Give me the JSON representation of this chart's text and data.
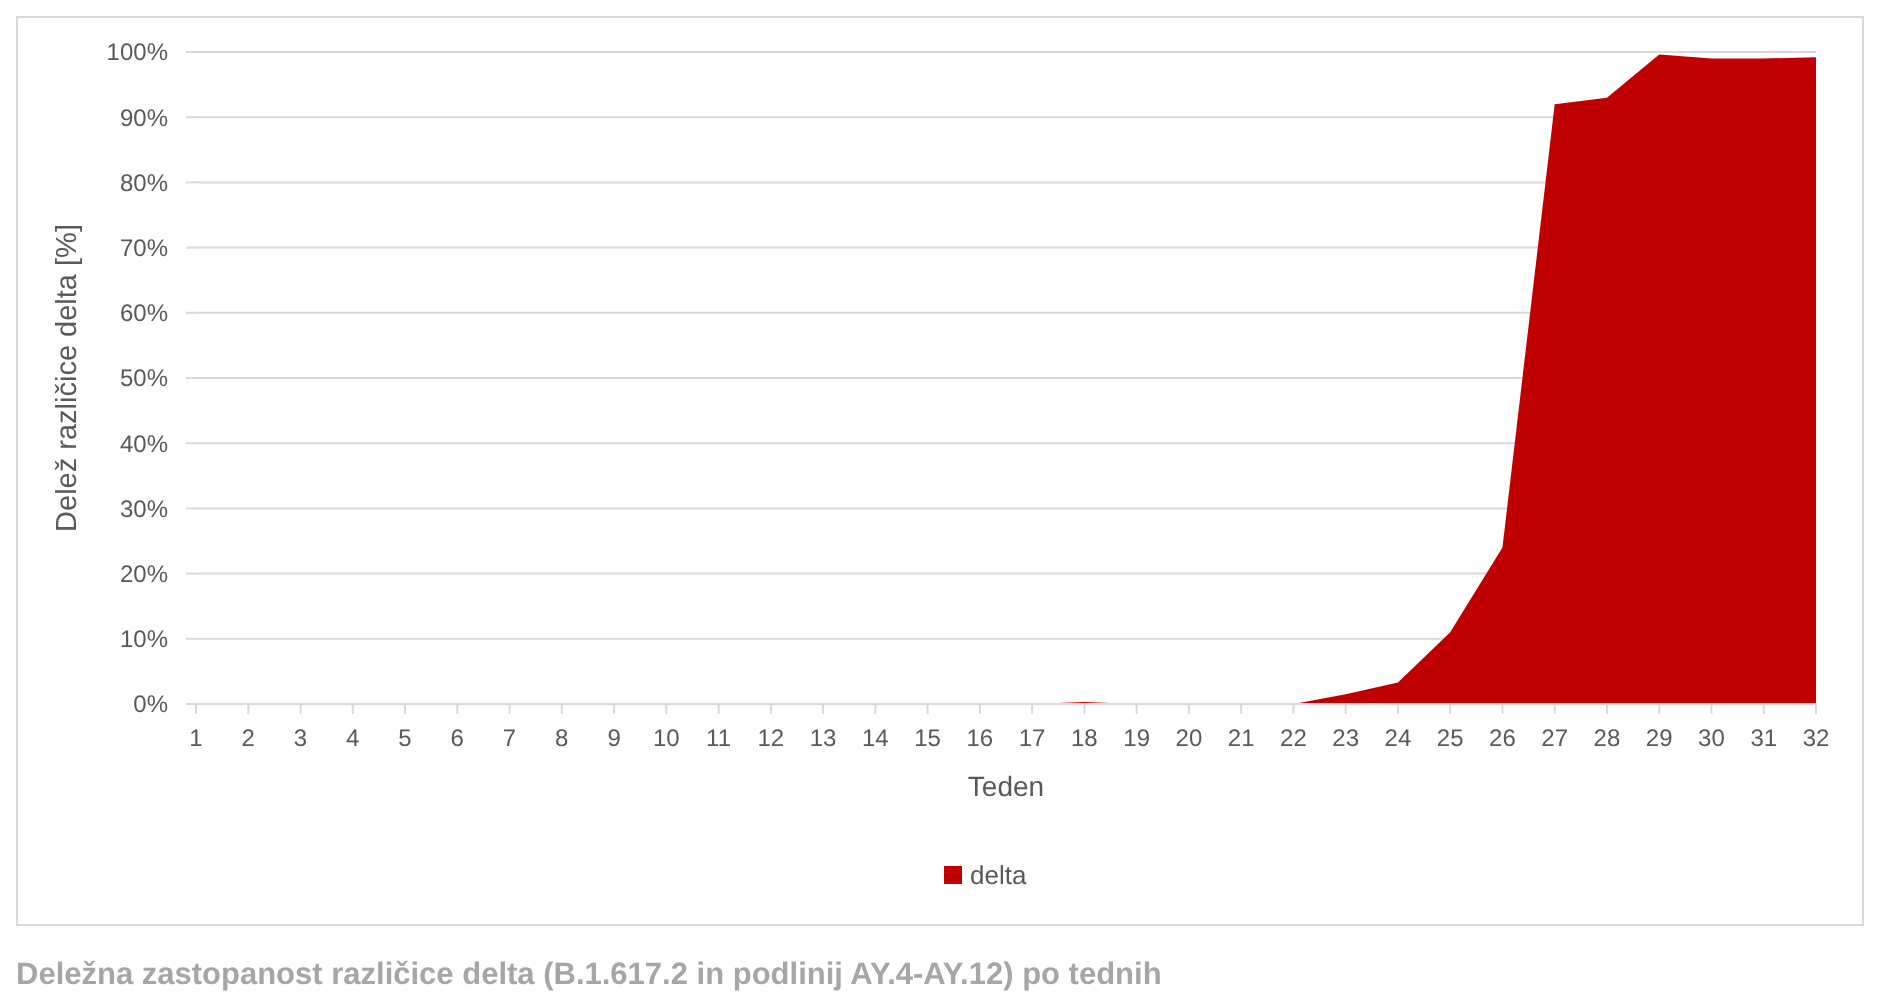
{
  "chart_data": {
    "type": "area",
    "xlabel": "Teden",
    "ylabel": "Delež različice delta [%]",
    "x": [
      1,
      2,
      3,
      4,
      5,
      6,
      7,
      8,
      9,
      10,
      11,
      12,
      13,
      14,
      15,
      16,
      17,
      18,
      19,
      20,
      21,
      22,
      23,
      24,
      25,
      26,
      27,
      28,
      29,
      30,
      31,
      32
    ],
    "series": [
      {
        "name": "delta",
        "color": "#c00000",
        "values": [
          0,
          0,
          0,
          0,
          0,
          0,
          0,
          0,
          0,
          0,
          0,
          0,
          0,
          0,
          0,
          0,
          0,
          0.3,
          0,
          0,
          0,
          0,
          1.5,
          3.3,
          11,
          24,
          92,
          93,
          99.6,
          99,
          99,
          99.2
        ]
      }
    ],
    "xlim": [
      1,
      32
    ],
    "xticks": [
      1,
      2,
      3,
      4,
      5,
      6,
      7,
      8,
      9,
      10,
      11,
      12,
      13,
      14,
      15,
      16,
      17,
      18,
      19,
      20,
      21,
      22,
      23,
      24,
      25,
      26,
      27,
      28,
      29,
      30,
      31,
      32
    ],
    "ylim": [
      0,
      100
    ],
    "yticks": [
      {
        "value": 0,
        "label": "0%"
      },
      {
        "value": 10,
        "label": "10%"
      },
      {
        "value": 20,
        "label": "20%"
      },
      {
        "value": 30,
        "label": "30%"
      },
      {
        "value": 40,
        "label": "40%"
      },
      {
        "value": 50,
        "label": "50%"
      },
      {
        "value": 60,
        "label": "60%"
      },
      {
        "value": 70,
        "label": "70%"
      },
      {
        "value": 80,
        "label": "80%"
      },
      {
        "value": 90,
        "label": "90%"
      },
      {
        "value": 100,
        "label": "100%"
      }
    ],
    "grid": "y",
    "legend": "bottom",
    "annotations": [
      "Deležna zastopanost različice delta (B.1.617.2 in podlinij AY.4-AY.12) po tednih"
    ]
  }
}
